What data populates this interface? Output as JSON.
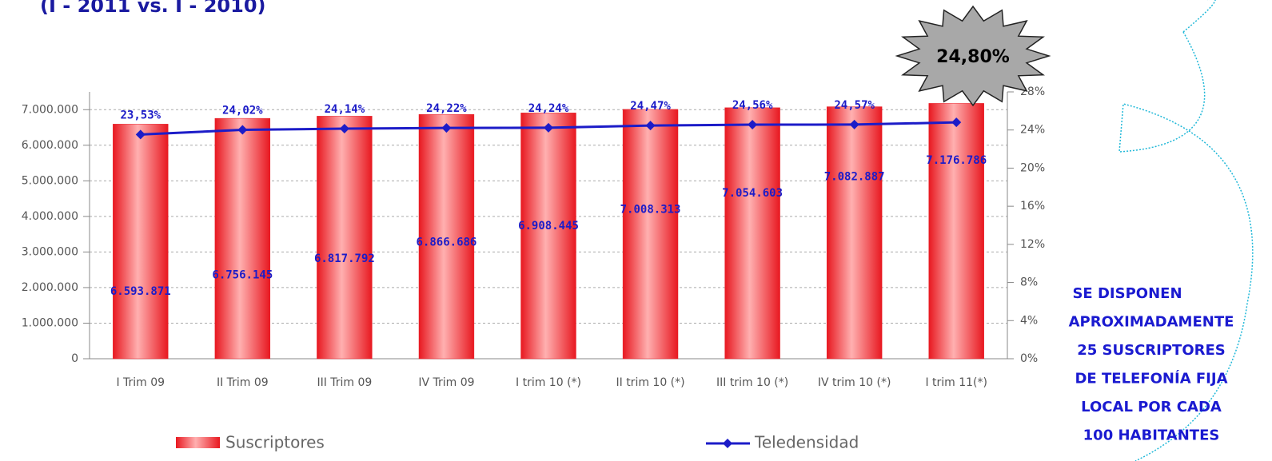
{
  "chart_data": {
    "type": "bar",
    "title": "(I - 2011 vs. I - 2010)",
    "categories": [
      "I Trim 09",
      "II Trim 09",
      "III Trim 09",
      "IV Trim 09",
      "I trim 10 (*)",
      "II trim 10 (*)",
      "III trim 10 (*)",
      "IV trim 10 (*)",
      "I trim 11(*)"
    ],
    "series": [
      {
        "name": "Suscriptores",
        "color": "#e8202a",
        "values": [
          6593871,
          6756145,
          6817792,
          6866686,
          6908445,
          7008313,
          7054603,
          7082887,
          7176786
        ],
        "value_labels": [
          "6.593.871",
          "6.756.145",
          "6.817.792",
          "6.866.686",
          "6.908.445",
          "7.008.313",
          "7.054.603",
          "7.082.887",
          "7.176.786"
        ]
      },
      {
        "name": "Teledensidad",
        "color": "#1c1cc8",
        "type": "line",
        "axis": "y2",
        "values": [
          23.53,
          24.02,
          24.14,
          24.22,
          24.24,
          24.47,
          24.56,
          24.57,
          24.8
        ],
        "value_labels": [
          "23,53%",
          "24,02%",
          "24,14%",
          "24,22%",
          "24,24%",
          "24,47%",
          "24,56%",
          "24,57%",
          null
        ]
      }
    ],
    "ylim": [
      0,
      7500000
    ],
    "yticks": [
      0,
      {
        "value": 1000000,
        "label": "1.000.000"
      },
      {
        "value": 2000000,
        "label": "2.000.000"
      },
      {
        "value": 3000000,
        "label": "3.000.000"
      },
      {
        "value": 4000000,
        "label": "4.000.000"
      },
      {
        "value": 5000000,
        "label": "5.000.000"
      },
      {
        "value": 6000000,
        "label": "6.000.000"
      },
      {
        "value": 7000000,
        "label": "7.000.000"
      }
    ],
    "y2lim": [
      0,
      28
    ],
    "y2ticks": [
      {
        "value": 0,
        "label": "0%"
      },
      {
        "value": 4,
        "label": "4%"
      },
      {
        "value": 8,
        "label": "8%"
      },
      {
        "value": 12,
        "label": "12%"
      },
      {
        "value": 16,
        "label": "16%"
      },
      {
        "value": 20,
        "label": "20%"
      },
      {
        "value": 24,
        "label": "24%"
      },
      {
        "value": 28,
        "label": "28%"
      }
    ],
    "grid": true,
    "annotations": {
      "badge": "24,80%",
      "note": [
        "SE DISPONEN",
        "APROXIMADAMENTE",
        "25 SUSCRIPTORES",
        "DE TELEFONÍA FIJA",
        "LOCAL  POR CADA",
        "100 HABITANTES"
      ]
    }
  }
}
